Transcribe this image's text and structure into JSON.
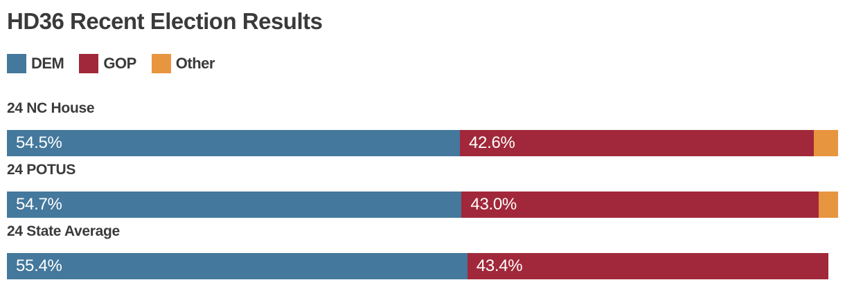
{
  "title": "HD36 Recent Election Results",
  "colors": {
    "dem": "#44789c",
    "gop": "#a1283a",
    "other": "#e8953f",
    "text": "#3a3a3a",
    "bar_label_text": "#ffffff",
    "background": "#ffffff"
  },
  "legend": {
    "position": "top",
    "items": [
      {
        "key": "dem",
        "label": "DEM"
      },
      {
        "key": "gop",
        "label": "GOP"
      },
      {
        "key": "other",
        "label": "Other"
      }
    ]
  },
  "chart_data": {
    "type": "bar",
    "orientation": "horizontal",
    "stacked": true,
    "unit": "percent",
    "xlim": [
      0,
      100
    ],
    "grid": false,
    "legend_position": "top",
    "title": "HD36 Recent Election Results",
    "categories": [
      "24 NC House",
      "24 POTUS",
      "24 State Average"
    ],
    "series": [
      {
        "name": "DEM",
        "color": "#44789c",
        "values": [
          54.5,
          54.7,
          55.4
        ]
      },
      {
        "name": "GOP",
        "color": "#a1283a",
        "values": [
          42.6,
          43.0,
          43.4
        ]
      },
      {
        "name": "Other",
        "color": "#e8953f",
        "values": [
          2.9,
          2.3,
          0
        ]
      }
    ],
    "data_labels": [
      [
        "54.5%",
        "42.6%",
        ""
      ],
      [
        "54.7%",
        "43.0%",
        ""
      ],
      [
        "55.4%",
        "43.4%",
        ""
      ]
    ]
  },
  "rows": [
    {
      "label": "24 NC House",
      "dem": {
        "pct": 54.5,
        "label": "54.5%"
      },
      "gop": {
        "pct": 42.6,
        "label": "42.6%"
      },
      "other": {
        "pct": 2.9,
        "label": ""
      }
    },
    {
      "label": "24 POTUS",
      "dem": {
        "pct": 54.7,
        "label": "54.7%"
      },
      "gop": {
        "pct": 43.0,
        "label": "43.0%"
      },
      "other": {
        "pct": 2.3,
        "label": ""
      }
    },
    {
      "label": "24 State Average",
      "dem": {
        "pct": 55.4,
        "label": "55.4%"
      },
      "gop": {
        "pct": 43.4,
        "label": "43.4%"
      },
      "other": {
        "pct": 0,
        "label": ""
      }
    }
  ]
}
